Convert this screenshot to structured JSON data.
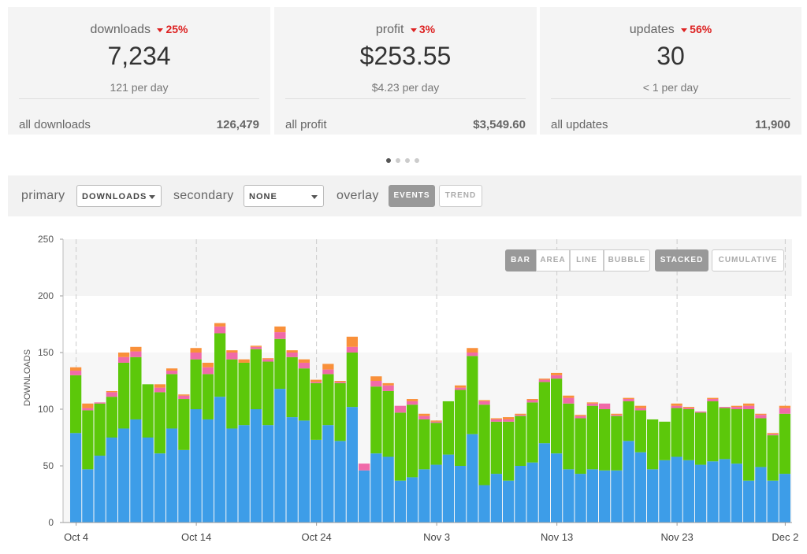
{
  "cards": [
    {
      "title": "downloads",
      "delta": "25%",
      "value": "7,234",
      "perday": "121 per day",
      "all_label": "all downloads",
      "all_value": "126,479"
    },
    {
      "title": "profit",
      "delta": "3%",
      "value": "$253.55",
      "perday": "$4.23 per day",
      "all_label": "all profit",
      "all_value": "$3,549.60"
    },
    {
      "title": "updates",
      "delta": "56%",
      "value": "30",
      "perday": "< 1 per day",
      "all_label": "all updates",
      "all_value": "11,900"
    }
  ],
  "controls": {
    "primary_label": "primary",
    "primary_value": "DOWNLOADS",
    "secondary_label": "secondary",
    "secondary_value": "NONE",
    "overlay_label": "overlay",
    "events": "EVENTS",
    "trend": "TREND"
  },
  "chart_buttons": {
    "bar": "BAR",
    "area": "AREA",
    "line": "LINE",
    "bubble": "BUBBLE",
    "stacked": "STACKED",
    "cumulative": "CUMULATIVE"
  },
  "colors": {
    "blue": "#3d9de8",
    "green": "#5cc80a",
    "pink": "#f06aa8",
    "orange": "#f9903a"
  },
  "chart_data": {
    "type": "bar",
    "ylabel": "DOWNLOADS",
    "ylim": [
      0,
      250
    ],
    "yticks": [
      0,
      50,
      100,
      150,
      200,
      250
    ],
    "xticklabels": [
      "Oct 4",
      "Oct 14",
      "Oct 24",
      "Nov 3",
      "Nov 13",
      "Nov 23",
      "Dec 2"
    ],
    "categories": [
      "Oct 4",
      "Oct 5",
      "Oct 6",
      "Oct 7",
      "Oct 8",
      "Oct 9",
      "Oct 10",
      "Oct 11",
      "Oct 12",
      "Oct 13",
      "Oct 14",
      "Oct 15",
      "Oct 16",
      "Oct 17",
      "Oct 18",
      "Oct 19",
      "Oct 20",
      "Oct 21",
      "Oct 22",
      "Oct 23",
      "Oct 24",
      "Oct 25",
      "Oct 26",
      "Oct 27",
      "Oct 28",
      "Oct 29",
      "Oct 30",
      "Oct 31",
      "Nov 1",
      "Nov 2",
      "Nov 3",
      "Nov 4",
      "Nov 5",
      "Nov 6",
      "Nov 7",
      "Nov 8",
      "Nov 9",
      "Nov 10",
      "Nov 11",
      "Nov 12",
      "Nov 13",
      "Nov 14",
      "Nov 15",
      "Nov 16",
      "Nov 17",
      "Nov 18",
      "Nov 19",
      "Nov 20",
      "Nov 21",
      "Nov 22",
      "Nov 23",
      "Nov 24",
      "Nov 25",
      "Nov 26",
      "Nov 27",
      "Nov 28",
      "Nov 29",
      "Nov 30",
      "Dec 1",
      "Dec 2"
    ],
    "series": [
      {
        "values": [
          79,
          47,
          59,
          75,
          83,
          91,
          75,
          61,
          83,
          64,
          100,
          91,
          111,
          83,
          86,
          100,
          86,
          118,
          93,
          90,
          73,
          86,
          72,
          102,
          46,
          61,
          58,
          37,
          40,
          47,
          51,
          60,
          50,
          78,
          33,
          43,
          37,
          50,
          53,
          70,
          61,
          47,
          43,
          47,
          46,
          46,
          72,
          62,
          47,
          55,
          58,
          55,
          51,
          54,
          56,
          52,
          37,
          49,
          37,
          43
        ]
      },
      {
        "values": [
          51,
          52,
          46,
          36,
          58,
          55,
          47,
          54,
          48,
          45,
          44,
          40,
          56,
          61,
          55,
          53,
          56,
          44,
          53,
          46,
          50,
          45,
          51,
          48,
          0,
          59,
          58,
          60,
          64,
          44,
          37,
          47,
          67,
          69,
          71,
          46,
          52,
          44,
          53,
          54,
          66,
          58,
          49,
          56,
          54,
          48,
          35,
          37,
          44,
          34,
          43,
          45,
          46,
          53,
          45,
          48,
          63,
          43,
          40,
          53
        ]
      },
      {
        "values": [
          4,
          2,
          1,
          4,
          5,
          5,
          0,
          4,
          3,
          3,
          6,
          6,
          6,
          6,
          0,
          2,
          2,
          6,
          4,
          5,
          1,
          4,
          1,
          5,
          6,
          5,
          5,
          6,
          3,
          3,
          1,
          0,
          2,
          3,
          3,
          2,
          2,
          1,
          2,
          2,
          3,
          5,
          2,
          2,
          5,
          1,
          2,
          2,
          0,
          0,
          2,
          1,
          1,
          2,
          1,
          2,
          3,
          3,
          1,
          5
        ]
      },
      {
        "values": [
          3,
          4,
          0,
          1,
          4,
          4,
          0,
          3,
          2,
          1,
          4,
          4,
          3,
          2,
          3,
          1,
          1,
          5,
          2,
          3,
          2,
          5,
          1,
          9,
          0,
          4,
          2,
          0,
          2,
          2,
          1,
          0,
          2,
          4,
          1,
          1,
          2,
          1,
          1,
          1,
          2,
          2,
          1,
          1,
          0,
          1,
          1,
          2,
          0,
          0,
          2,
          1,
          0,
          1,
          0,
          1,
          2,
          1,
          1,
          2
        ]
      }
    ]
  }
}
